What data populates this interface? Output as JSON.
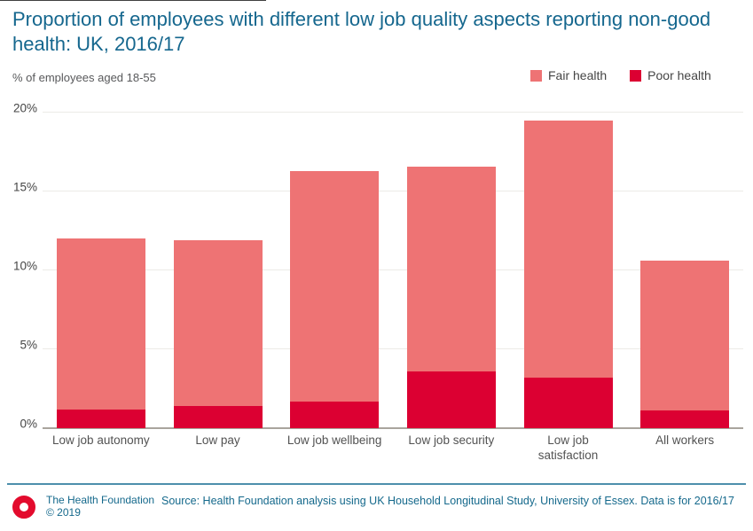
{
  "title": "Proportion of employees with different low job quality aspects reporting non-good health: UK, 2016/17",
  "subtitle": "% of employees aged 18-55",
  "legend": {
    "items": [
      {
        "label": "Fair health",
        "color": "#EE7374"
      },
      {
        "label": "Poor health",
        "color": "#DC0032"
      }
    ]
  },
  "chart_data": {
    "type": "bar",
    "stacked": true,
    "title": "Proportion of employees with different low job quality aspects reporting non-good health: UK, 2016/17",
    "ylabel": "% of employees aged 18-55",
    "xlabel": "",
    "categories": [
      "Low job autonomy",
      "Low pay",
      "Low job wellbeing",
      "Low job security",
      "Low job\nsatisfaction",
      "All workers"
    ],
    "series": [
      {
        "name": "Poor health",
        "color": "#DC0032",
        "values": [
          1.2,
          1.4,
          1.7,
          3.6,
          3.2,
          1.1
        ]
      },
      {
        "name": "Fair health",
        "color": "#EE7374",
        "values": [
          10.8,
          10.5,
          14.6,
          13.0,
          16.3,
          9.5
        ]
      }
    ],
    "totals": [
      12.0,
      11.9,
      16.3,
      16.6,
      19.5,
      10.6
    ],
    "ylim": [
      0,
      20
    ],
    "ytick_values": [
      0,
      5,
      10,
      15,
      20
    ],
    "ytick_labels": [
      "0%",
      "5%",
      "10%",
      "15%",
      "20%"
    ],
    "grid": true,
    "legend_position": "top-right"
  },
  "footer": {
    "org": "The Health Foundation",
    "copyright": "© 2019",
    "source": "Source: Health Foundation analysis using UK Household Longitudinal Study, University of Essex. Data is for 2016/17"
  },
  "colors": {
    "title_text": "#15678E",
    "fair_health": "#EE7374",
    "poor_health": "#DC0032",
    "footer_rule": "#4D8FAC",
    "footer_text": "#15698C",
    "gridline": "#ECEBE7",
    "axis_line": "#A9A49D",
    "tick_label": "#454545",
    "logo_red": "#E30B2D"
  }
}
